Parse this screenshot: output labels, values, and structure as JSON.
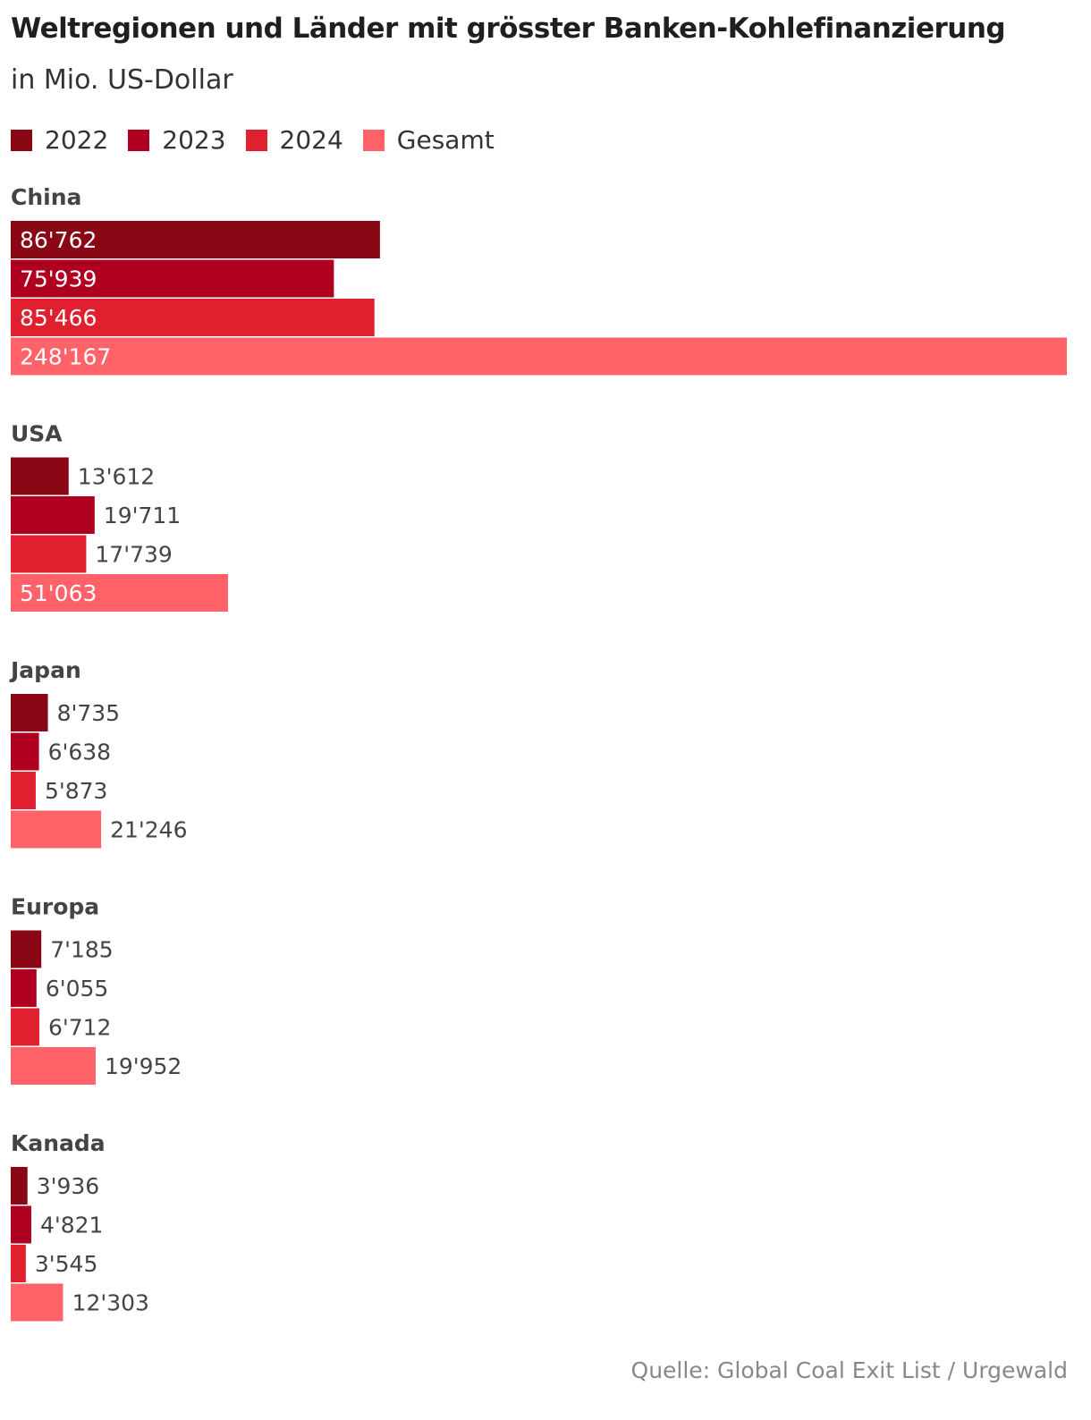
{
  "header": {
    "title": "Weltregionen und Länder mit grösster Banken-Kohlefinanzierung",
    "subtitle": "in Mio. US-Dollar"
  },
  "legend": {
    "items": [
      {
        "label": "2022",
        "color": "#8a0715"
      },
      {
        "label": "2023",
        "color": "#b00020"
      },
      {
        "label": "2024",
        "color": "#e0202e"
      },
      {
        "label": "Gesamt",
        "color": "#ff6268"
      }
    ]
  },
  "chart_data": {
    "type": "bar",
    "orientation": "horizontal",
    "series_names": [
      "2022",
      "2023",
      "2024",
      "Gesamt"
    ],
    "colors": [
      "#8a0715",
      "#b00020",
      "#e0202e",
      "#ff6268"
    ],
    "xlim": [
      0,
      248167
    ],
    "groups": [
      {
        "name": "China",
        "values": [
          86762,
          75939,
          85466,
          248167
        ],
        "labels": [
          "86'762",
          "75'939",
          "85'466",
          "248'167"
        ]
      },
      {
        "name": "USA",
        "values": [
          13612,
          19711,
          17739,
          51063
        ],
        "labels": [
          "13'612",
          "19'711",
          "17'739",
          "51'063"
        ]
      },
      {
        "name": "Japan",
        "values": [
          8735,
          6638,
          5873,
          21246
        ],
        "labels": [
          "8'735",
          "6'638",
          "5'873",
          "21'246"
        ]
      },
      {
        "name": "Europa",
        "values": [
          7185,
          6055,
          6712,
          19952
        ],
        "labels": [
          "7'185",
          "6'055",
          "6'712",
          "19'952"
        ]
      },
      {
        "name": "Kanada",
        "values": [
          3936,
          4821,
          3545,
          12303
        ],
        "labels": [
          "3'936",
          "4'821",
          "3'545",
          "12'303"
        ]
      }
    ]
  },
  "footer": {
    "source": "Quelle: Global Coal Exit List / Urgewald"
  }
}
